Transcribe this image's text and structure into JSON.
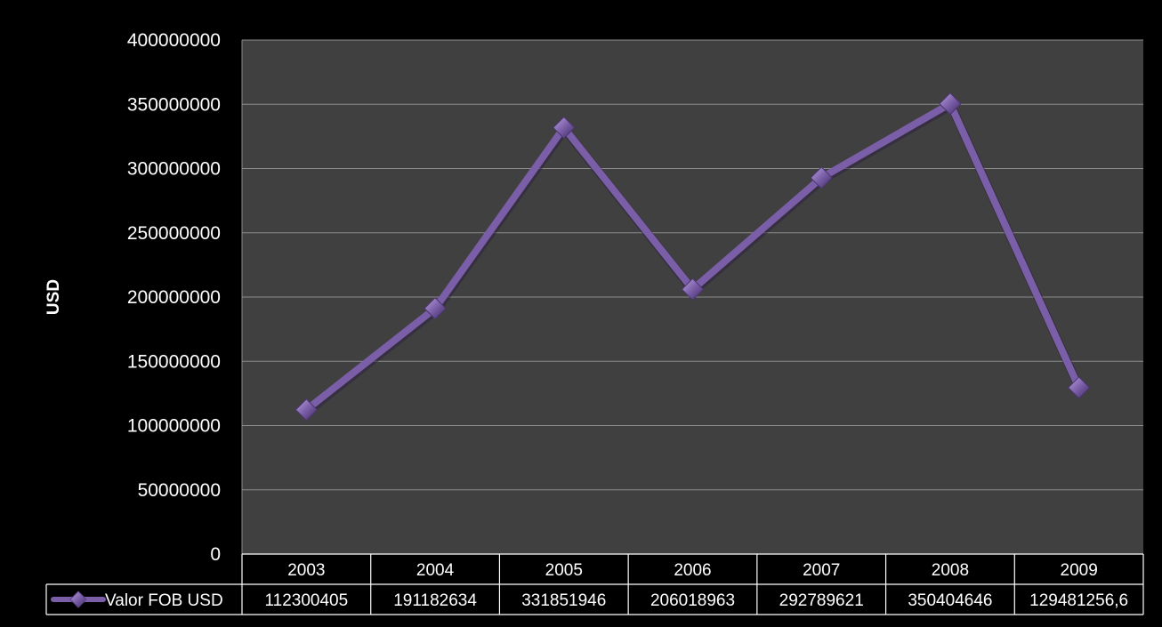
{
  "chart_data": {
    "type": "line",
    "title": "",
    "xlabel": "",
    "ylabel": "USD",
    "ylim": [
      0,
      400000000
    ],
    "y_ticks": [
      0,
      50000000,
      100000000,
      150000000,
      200000000,
      250000000,
      300000000,
      350000000,
      400000000
    ],
    "y_tick_labels": [
      "0",
      "50000000",
      "100000000",
      "150000000",
      "200000000",
      "250000000",
      "300000000",
      "350000000",
      "400000000"
    ],
    "categories": [
      "2003",
      "2004",
      "2005",
      "2006",
      "2007",
      "2008",
      "2009"
    ],
    "grid": true,
    "legend_placement": "data-table-left",
    "series": [
      {
        "name": "Valor FOB USD",
        "values": [
          112300405,
          191182634,
          331851946,
          206018963,
          292789621,
          350404646,
          129481256.6
        ],
        "value_labels": [
          "112300405",
          "191182634",
          "331851946",
          "206018963",
          "292789621",
          "350404646",
          "129481256,6"
        ],
        "color": "#7b5ea8",
        "marker": "diamond"
      }
    ],
    "colors": {
      "background": "#000000",
      "plot_area": "#404040",
      "gridline": "#8c8c8c",
      "text": "#ffffff",
      "table_border": "#ffffff"
    }
  }
}
